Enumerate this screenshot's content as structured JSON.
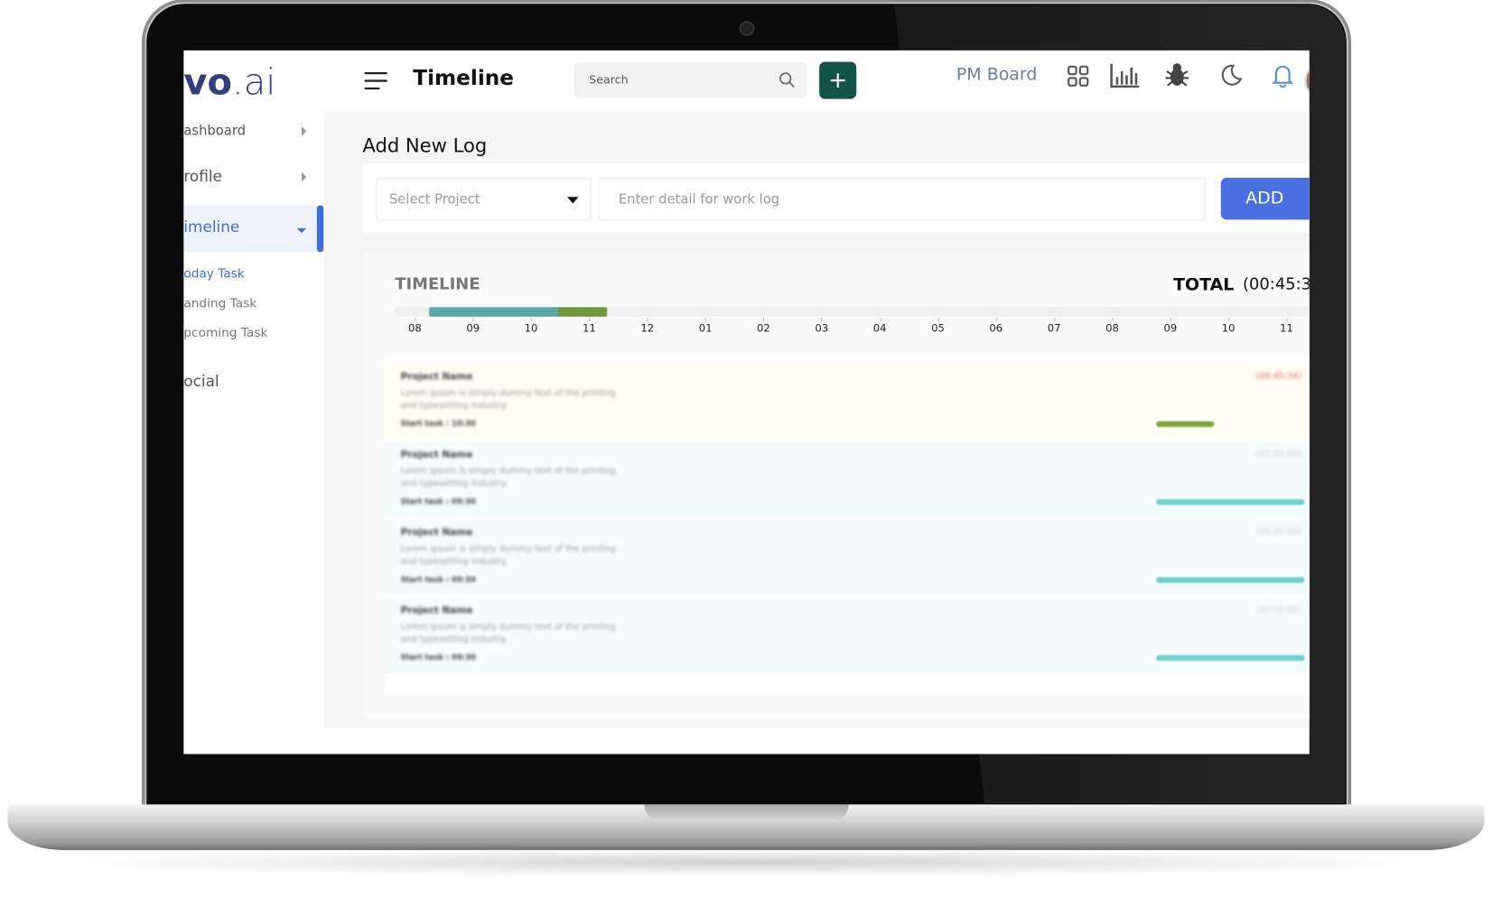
{
  "logo": {
    "text": "vo",
    "suffix": ".ai"
  },
  "header": {
    "title": "Timeline",
    "search_placeholder": "Search",
    "add_button": "+",
    "link": "PM Board"
  },
  "sidebar": {
    "items": [
      "ashboard",
      "rofile",
      "imeline"
    ],
    "subitems": [
      "oday Task",
      "anding Task",
      "pcoming Task"
    ],
    "social": "ocial"
  },
  "log_form": {
    "title": "Add New Log",
    "select_placeholder": "Select Project",
    "input_placeholder": "Enter detail for work log",
    "button": "ADD"
  },
  "timeline": {
    "title": "TIMELINE",
    "total_label": "TOTAL",
    "total_value": "(00:45:3",
    "hours": [
      "08",
      "09",
      "10",
      "11",
      "12",
      "01",
      "02",
      "03",
      "04",
      "05",
      "06",
      "07",
      "08",
      "09",
      "10",
      "11"
    ],
    "tasks": [
      {
        "name": "Project Name",
        "description_1": "Lorem Ipsum is simply dummy text of the printing",
        "description_2": "and typesetting industry.",
        "start": "Start task : 10:30",
        "duration": "(00:45:34)"
      },
      {
        "name": "Project Name",
        "description_1": "Lorem Ipsum is simply dummy text of the printing",
        "description_2": "and typesetting industry.",
        "start": "Start task : 09:30",
        "duration": "(00:00:00)"
      },
      {
        "name": "Project Name",
        "description_1": "Lorem Ipsum is simply dummy text of the printing",
        "description_2": "and typesetting industry.",
        "start": "Start task : 09:30",
        "duration": "(00:00:00)"
      },
      {
        "name": "Project Name",
        "description_1": "Lorem Ipsum is simply dummy text of the printing",
        "description_2": "and typesetting industry.",
        "start": "Start task : 09:30",
        "duration": "(00:00:00)"
      }
    ]
  }
}
